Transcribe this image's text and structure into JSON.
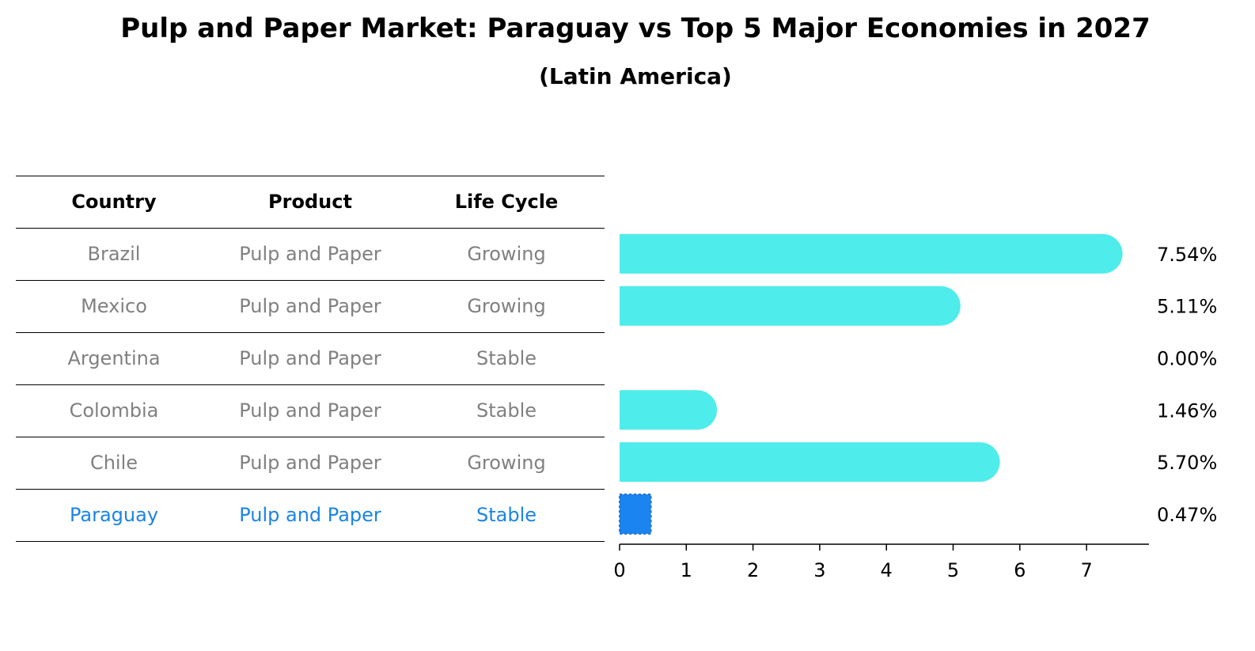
{
  "title": "Pulp and Paper Market: Paraguay vs Top 5 Major Economies in 2027",
  "subtitle": "(Latin America)",
  "table": {
    "headers": [
      "Country",
      "Product",
      "Life Cycle"
    ],
    "rows": [
      [
        "Brazil",
        "Pulp and Paper",
        "Growing"
      ],
      [
        "Mexico",
        "Pulp and Paper",
        "Growing"
      ],
      [
        "Argentina",
        "Pulp and Paper",
        "Stable"
      ],
      [
        "Colombia",
        "Pulp and Paper",
        "Stable"
      ],
      [
        "Chile",
        "Pulp and Paper",
        "Growing"
      ],
      [
        "Paraguay",
        "Pulp and Paper",
        "Stable"
      ]
    ],
    "highlight_row": "Paraguay"
  },
  "colors": {
    "bar": "#4eeceb",
    "highlight": "#1a84f0",
    "muted_text": "#808080",
    "highlight_text": "#1a84e3"
  },
  "chart_data": {
    "type": "bar",
    "orientation": "horizontal",
    "categories": [
      "Brazil",
      "Mexico",
      "Argentina",
      "Colombia",
      "Chile",
      "Paraguay"
    ],
    "values": [
      7.54,
      5.11,
      0.0,
      1.46,
      5.7,
      0.47
    ],
    "value_labels": [
      "7.54%",
      "5.11%",
      "0.00%",
      "1.46%",
      "5.70%",
      "0.47%"
    ],
    "xlim": [
      0,
      7.9
    ],
    "xticks": [
      0,
      1,
      2,
      3,
      4,
      5,
      6,
      7
    ],
    "grid": false
  }
}
